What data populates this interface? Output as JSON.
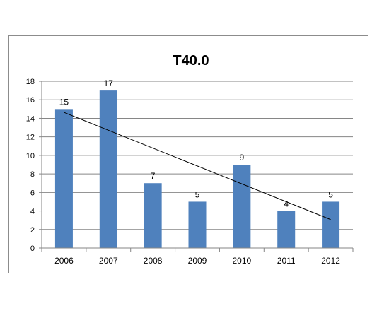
{
  "chart_data": {
    "type": "bar",
    "title": "T40.0",
    "categories": [
      "2006",
      "2007",
      "2008",
      "2009",
      "2010",
      "2011",
      "2012"
    ],
    "values": [
      15,
      17,
      7,
      5,
      9,
      4,
      5
    ],
    "data_labels": [
      "15",
      "17",
      "7",
      "5",
      "9",
      "4",
      "5"
    ],
    "ylim": [
      0,
      18
    ],
    "yticks": [
      "0",
      "2",
      "4",
      "6",
      "8",
      "10",
      "12",
      "14",
      "16",
      "18"
    ],
    "trendline": {
      "type": "linear",
      "start": 14.64,
      "end": 3.07
    },
    "grid": true,
    "legend": "none",
    "colors": {
      "bar": "#4f81bd",
      "grid": "#868686",
      "axis": "#868686",
      "trend": "#000000",
      "text": "#000000"
    }
  }
}
